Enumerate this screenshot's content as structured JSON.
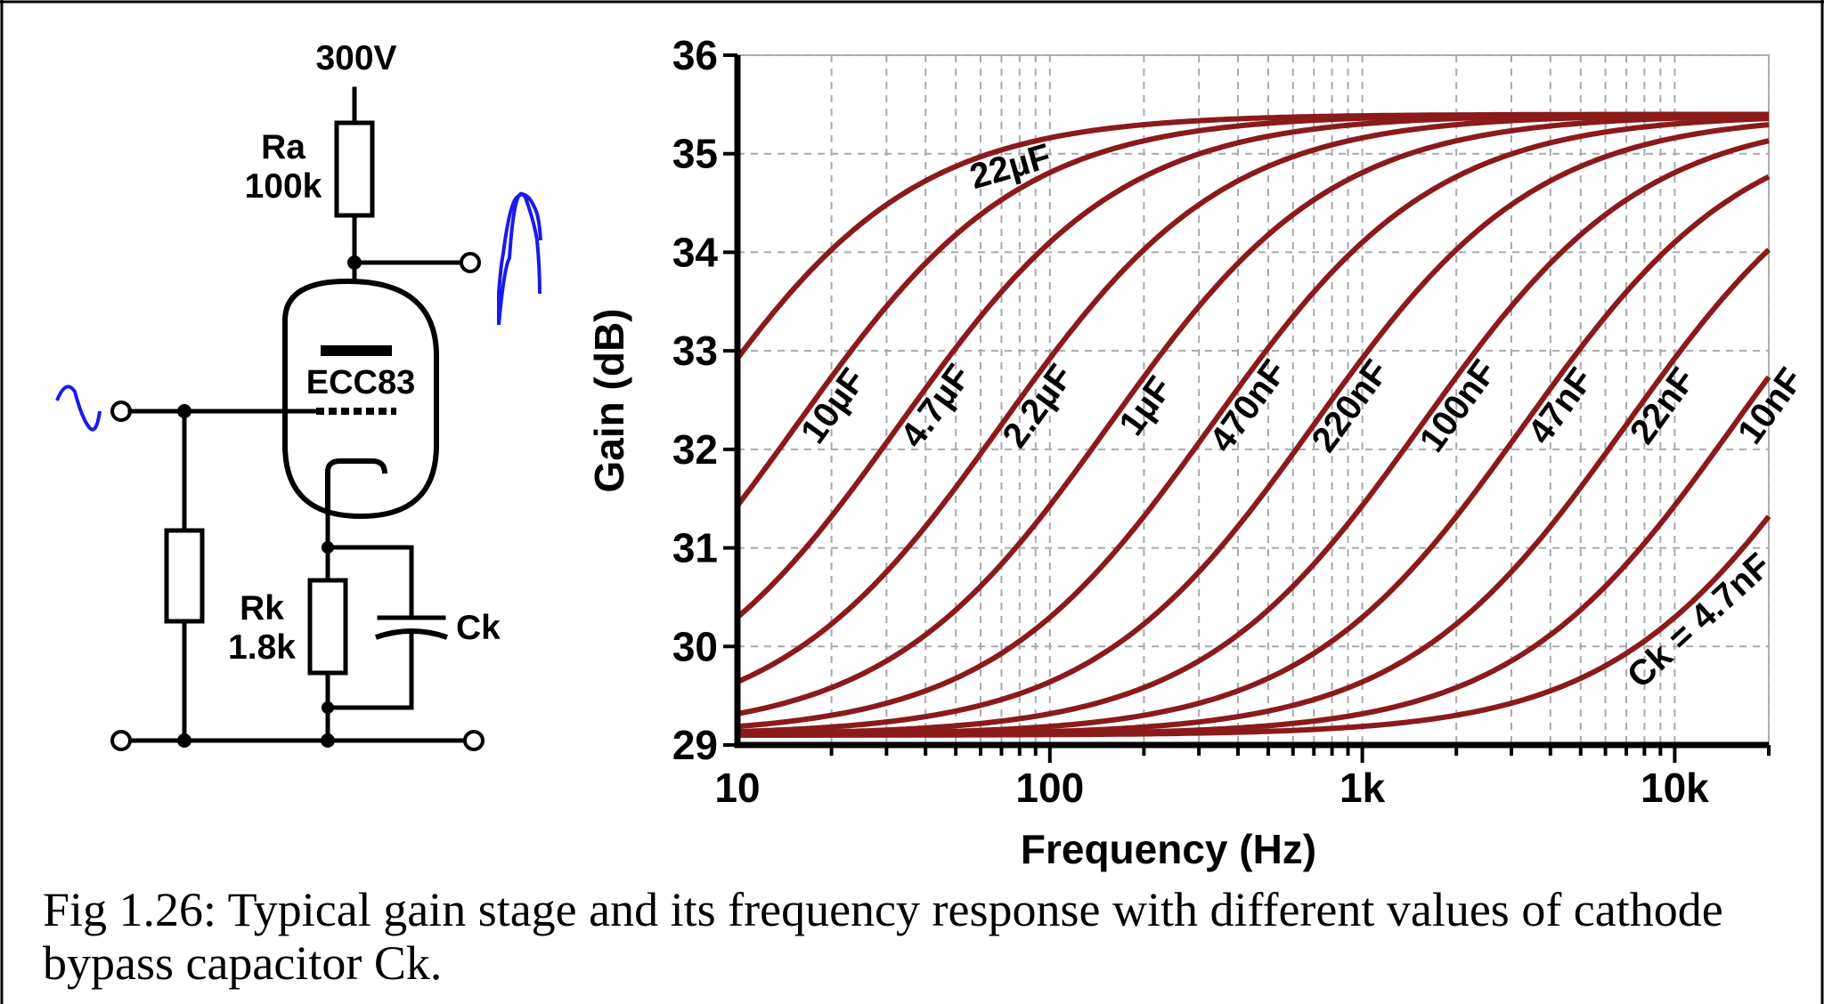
{
  "circuit": {
    "supply_label": "300V",
    "ra_name": "Ra",
    "ra_value": "100k",
    "tube_label": "ECC83",
    "rk_name": "Rk",
    "rk_value": "1.8k",
    "ck_name": "Ck",
    "signal_color": "#1a1aee"
  },
  "chart_data": {
    "type": "line",
    "xlabel": "Frequency (Hz)",
    "ylabel": "Gain (dB)",
    "x_scale": "log",
    "xlim": [
      10,
      20000
    ],
    "ylim": [
      29,
      36
    ],
    "x_ticks": [
      {
        "value": 10,
        "label": "10"
      },
      {
        "value": 100,
        "label": "100"
      },
      {
        "value": 1000,
        "label": "1k"
      },
      {
        "value": 10000,
        "label": "10k"
      }
    ],
    "y_ticks": [
      {
        "value": 29,
        "label": "29"
      },
      {
        "value": 30,
        "label": "30"
      },
      {
        "value": 31,
        "label": "31"
      },
      {
        "value": 32,
        "label": "32"
      },
      {
        "value": 33,
        "label": "33"
      },
      {
        "value": 34,
        "label": "34"
      },
      {
        "value": 35,
        "label": "35"
      },
      {
        "value": 36,
        "label": "36"
      }
    ],
    "grid": true,
    "gain_low_db": 29.1,
    "gain_high_db": 35.4,
    "line_color": "#8b1a1a",
    "series": [
      {
        "name": "22µF",
        "label": "22µF",
        "center_hz": 7.0
      },
      {
        "name": "10µF",
        "label": "10µF",
        "center_hz": 15.5
      },
      {
        "name": "4.7µF",
        "label": "4.7µF",
        "center_hz": 33
      },
      {
        "name": "2.2µF",
        "label": "2.2µF",
        "center_hz": 70
      },
      {
        "name": "1µF",
        "label": "1µF",
        "center_hz": 155
      },
      {
        "name": "470nF",
        "label": "470nF",
        "center_hz": 330
      },
      {
        "name": "220nF",
        "label": "220nF",
        "center_hz": 700
      },
      {
        "name": "100nF",
        "label": "100nF",
        "center_hz": 1550
      },
      {
        "name": "47nF",
        "label": "47nF",
        "center_hz": 3300
      },
      {
        "name": "22nF",
        "label": "22nF",
        "center_hz": 7000
      },
      {
        "name": "10nF",
        "label": "10nF",
        "center_hz": 15500
      },
      {
        "name": "4.7nF",
        "label": "Ck = 4.7nF",
        "center_hz": 33000
      }
    ]
  },
  "caption": "Fig 1.26: Typical gain stage and its frequency response with different values of cathode bypass capacitor Ck."
}
